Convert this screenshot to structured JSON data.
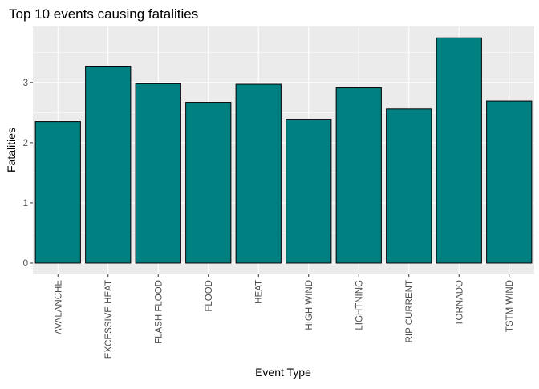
{
  "chart_data": {
    "type": "bar",
    "title": "Top 10 events causing fatalities",
    "xlabel": "Event Type",
    "ylabel": "Fatalities",
    "categories": [
      "AVALANCHE",
      "EXCESSIVE HEAT",
      "FLASH FLOOD",
      "FLOOD",
      "HEAT",
      "HIGH WIND",
      "LIGHTNING",
      "RIP CURRENT",
      "TORNADO",
      "TSTM WIND"
    ],
    "values": [
      2.35,
      3.27,
      2.98,
      2.67,
      2.97,
      2.39,
      2.91,
      2.56,
      3.74,
      2.69
    ],
    "ylim": [
      -0.187,
      3.93
    ],
    "yticks": [
      0,
      1,
      2,
      3
    ],
    "grid": true,
    "colors": {
      "bar_fill": "#008080",
      "bar_stroke": "#000000",
      "panel_bg": "#ebebeb",
      "grid_major": "#ffffff",
      "axis_text": "#4d4d4d",
      "title_text": "#000000"
    }
  }
}
